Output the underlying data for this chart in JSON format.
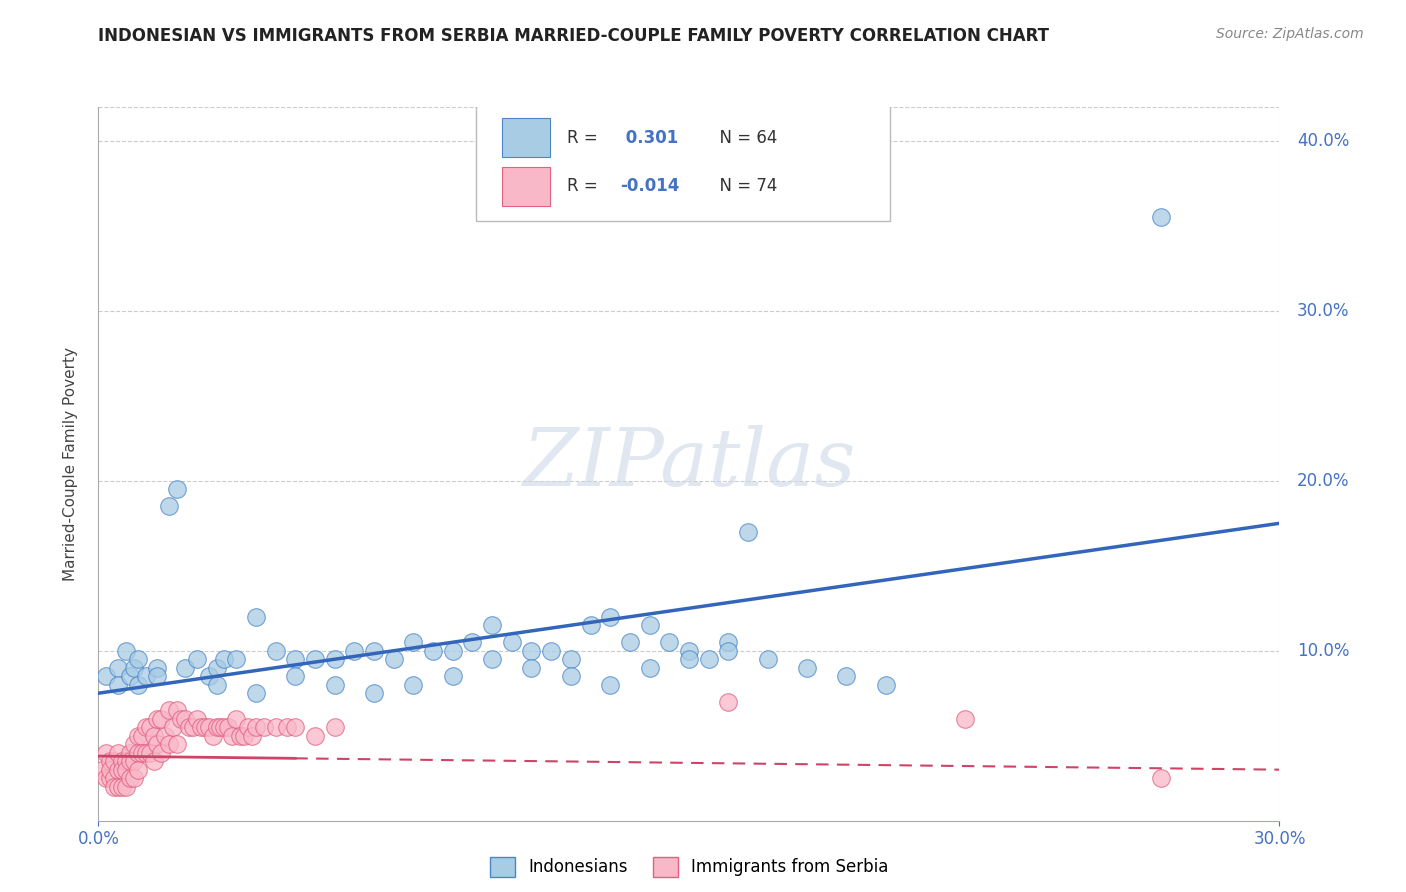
{
  "title": "INDONESIAN VS IMMIGRANTS FROM SERBIA MARRIED-COUPLE FAMILY POVERTY CORRELATION CHART",
  "source": "Source: ZipAtlas.com",
  "ylabel": "Married-Couple Family Poverty",
  "xmin": 0.0,
  "xmax": 0.3,
  "ymin": 0.0,
  "ymax": 0.42,
  "blue_color": "#a8cce4",
  "blue_edge_color": "#4a86c8",
  "pink_color": "#f9b8c8",
  "pink_edge_color": "#e06080",
  "blue_line_color": "#3366bb",
  "pink_line_color": "#cc4466",
  "watermark_color": "#ccd8e8",
  "indonesians_x": [
    0.002,
    0.005,
    0.005,
    0.007,
    0.008,
    0.009,
    0.01,
    0.01,
    0.012,
    0.015,
    0.015,
    0.018,
    0.02,
    0.022,
    0.025,
    0.028,
    0.03,
    0.032,
    0.035,
    0.04,
    0.045,
    0.05,
    0.055,
    0.06,
    0.065,
    0.07,
    0.075,
    0.08,
    0.085,
    0.09,
    0.095,
    0.1,
    0.105,
    0.11,
    0.115,
    0.12,
    0.125,
    0.13,
    0.135,
    0.14,
    0.145,
    0.15,
    0.155,
    0.16,
    0.165,
    0.03,
    0.04,
    0.05,
    0.06,
    0.07,
    0.08,
    0.09,
    0.1,
    0.11,
    0.12,
    0.13,
    0.14,
    0.15,
    0.16,
    0.17,
    0.18,
    0.19,
    0.2,
    0.27
  ],
  "indonesians_y": [
    0.085,
    0.09,
    0.08,
    0.1,
    0.085,
    0.09,
    0.08,
    0.095,
    0.085,
    0.09,
    0.085,
    0.185,
    0.195,
    0.09,
    0.095,
    0.085,
    0.09,
    0.095,
    0.095,
    0.12,
    0.1,
    0.095,
    0.095,
    0.095,
    0.1,
    0.1,
    0.095,
    0.105,
    0.1,
    0.1,
    0.105,
    0.115,
    0.105,
    0.1,
    0.1,
    0.095,
    0.115,
    0.12,
    0.105,
    0.115,
    0.105,
    0.1,
    0.095,
    0.105,
    0.17,
    0.08,
    0.075,
    0.085,
    0.08,
    0.075,
    0.08,
    0.085,
    0.095,
    0.09,
    0.085,
    0.08,
    0.09,
    0.095,
    0.1,
    0.095,
    0.09,
    0.085,
    0.08,
    0.355
  ],
  "serbia_x": [
    0.001,
    0.002,
    0.002,
    0.003,
    0.003,
    0.003,
    0.004,
    0.004,
    0.004,
    0.005,
    0.005,
    0.005,
    0.006,
    0.006,
    0.006,
    0.007,
    0.007,
    0.007,
    0.008,
    0.008,
    0.008,
    0.009,
    0.009,
    0.009,
    0.01,
    0.01,
    0.01,
    0.011,
    0.011,
    0.012,
    0.012,
    0.013,
    0.013,
    0.014,
    0.014,
    0.015,
    0.015,
    0.016,
    0.016,
    0.017,
    0.018,
    0.018,
    0.019,
    0.02,
    0.02,
    0.021,
    0.022,
    0.023,
    0.024,
    0.025,
    0.026,
    0.027,
    0.028,
    0.029,
    0.03,
    0.031,
    0.032,
    0.033,
    0.034,
    0.035,
    0.036,
    0.037,
    0.038,
    0.039,
    0.04,
    0.042,
    0.045,
    0.048,
    0.05,
    0.055,
    0.06,
    0.16,
    0.22,
    0.27
  ],
  "serbia_y": [
    0.03,
    0.04,
    0.025,
    0.035,
    0.025,
    0.03,
    0.035,
    0.025,
    0.02,
    0.04,
    0.03,
    0.02,
    0.035,
    0.03,
    0.02,
    0.035,
    0.03,
    0.02,
    0.04,
    0.035,
    0.025,
    0.045,
    0.035,
    0.025,
    0.05,
    0.04,
    0.03,
    0.05,
    0.04,
    0.055,
    0.04,
    0.055,
    0.04,
    0.05,
    0.035,
    0.06,
    0.045,
    0.06,
    0.04,
    0.05,
    0.065,
    0.045,
    0.055,
    0.065,
    0.045,
    0.06,
    0.06,
    0.055,
    0.055,
    0.06,
    0.055,
    0.055,
    0.055,
    0.05,
    0.055,
    0.055,
    0.055,
    0.055,
    0.05,
    0.06,
    0.05,
    0.05,
    0.055,
    0.05,
    0.055,
    0.055,
    0.055,
    0.055,
    0.055,
    0.05,
    0.055,
    0.07,
    0.06,
    0.025
  ],
  "blue_line_x0": 0.0,
  "blue_line_y0": 0.075,
  "blue_line_x1": 0.3,
  "blue_line_y1": 0.175,
  "pink_line_x0": 0.0,
  "pink_line_y0": 0.038,
  "pink_line_x1": 0.3,
  "pink_line_y1": 0.03
}
